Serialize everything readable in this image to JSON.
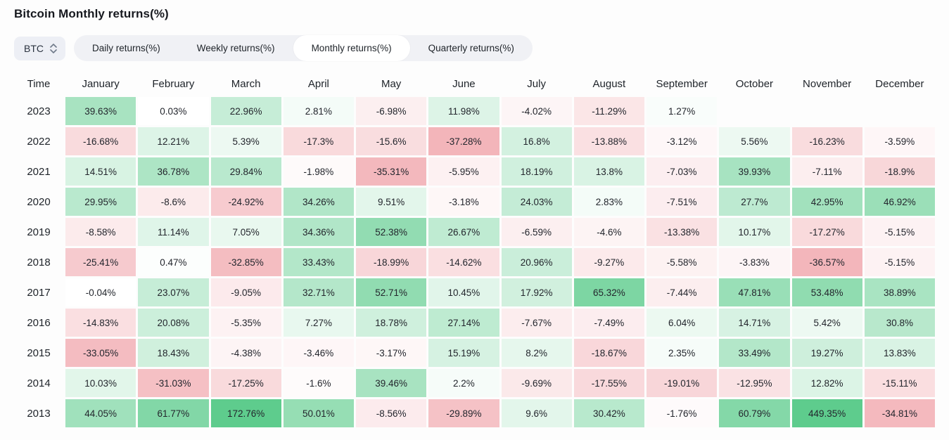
{
  "header": {
    "title": "Bitcoin Monthly returns(%)"
  },
  "controls": {
    "symbol_select": {
      "value": "BTC",
      "icon": "updown-chevron-icon"
    },
    "tabs": [
      {
        "label": "Daily returns(%)",
        "active": false
      },
      {
        "label": "Weekly returns(%)",
        "active": false
      },
      {
        "label": "Monthly returns(%)",
        "active": true
      },
      {
        "label": "Quarterly returns(%)",
        "active": false
      }
    ]
  },
  "chart_data": {
    "type": "heatmap",
    "title": "Bitcoin Monthly returns(%)",
    "time_column_header": "Time",
    "columns": [
      "January",
      "February",
      "March",
      "April",
      "May",
      "June",
      "July",
      "August",
      "September",
      "October",
      "November",
      "December"
    ],
    "rows": [
      {
        "year": "2023",
        "display": [
          "39.63%",
          "0.03%",
          "22.96%",
          "2.81%",
          "-6.98%",
          "11.98%",
          "-4.02%",
          "-11.29%",
          "1.27%",
          null,
          null,
          null
        ],
        "values": [
          39.63,
          0.03,
          22.96,
          2.81,
          -6.98,
          11.98,
          -4.02,
          -11.29,
          1.27,
          null,
          null,
          null
        ]
      },
      {
        "year": "2022",
        "display": [
          "-16.68%",
          "12.21%",
          "5.39%",
          "-17.3%",
          "-15.6%",
          "-37.28%",
          "16.8%",
          "-13.88%",
          "-3.12%",
          "5.56%",
          "-16.23%",
          "-3.59%"
        ],
        "values": [
          -16.68,
          12.21,
          5.39,
          -17.3,
          -15.6,
          -37.28,
          16.8,
          -13.88,
          -3.12,
          5.56,
          -16.23,
          -3.59
        ]
      },
      {
        "year": "2021",
        "display": [
          "14.51%",
          "36.78%",
          "29.84%",
          "-1.98%",
          "-35.31%",
          "-5.95%",
          "18.19%",
          "13.8%",
          "-7.03%",
          "39.93%",
          "-7.11%",
          "-18.9%"
        ],
        "values": [
          14.51,
          36.78,
          29.84,
          -1.98,
          -35.31,
          -5.95,
          18.19,
          13.8,
          -7.03,
          39.93,
          -7.11,
          -18.9
        ]
      },
      {
        "year": "2020",
        "display": [
          "29.95%",
          "-8.6%",
          "-24.92%",
          "34.26%",
          "9.51%",
          "-3.18%",
          "24.03%",
          "2.83%",
          "-7.51%",
          "27.7%",
          "42.95%",
          "46.92%"
        ],
        "values": [
          29.95,
          -8.6,
          -24.92,
          34.26,
          9.51,
          -3.18,
          24.03,
          2.83,
          -7.51,
          27.7,
          42.95,
          46.92
        ]
      },
      {
        "year": "2019",
        "display": [
          "-8.58%",
          "11.14%",
          "7.05%",
          "34.36%",
          "52.38%",
          "26.67%",
          "-6.59%",
          "-4.6%",
          "-13.38%",
          "10.17%",
          "-17.27%",
          "-5.15%"
        ],
        "values": [
          -8.58,
          11.14,
          7.05,
          34.36,
          52.38,
          26.67,
          -6.59,
          -4.6,
          -13.38,
          10.17,
          -17.27,
          -5.15
        ]
      },
      {
        "year": "2018",
        "display": [
          "-25.41%",
          "0.47%",
          "-32.85%",
          "33.43%",
          "-18.99%",
          "-14.62%",
          "20.96%",
          "-9.27%",
          "-5.58%",
          "-3.83%",
          "-36.57%",
          "-5.15%"
        ],
        "values": [
          -25.41,
          0.47,
          -32.85,
          33.43,
          -18.99,
          -14.62,
          20.96,
          -9.27,
          -5.58,
          -3.83,
          -36.57,
          -5.15
        ]
      },
      {
        "year": "2017",
        "display": [
          "-0.04%",
          "23.07%",
          "-9.05%",
          "32.71%",
          "52.71%",
          "10.45%",
          "17.92%",
          "65.32%",
          "-7.44%",
          "47.81%",
          "53.48%",
          "38.89%"
        ],
        "values": [
          -0.04,
          23.07,
          -9.05,
          32.71,
          52.71,
          10.45,
          17.92,
          65.32,
          -7.44,
          47.81,
          53.48,
          38.89
        ]
      },
      {
        "year": "2016",
        "display": [
          "-14.83%",
          "20.08%",
          "-5.35%",
          "7.27%",
          "18.78%",
          "27.14%",
          "-7.67%",
          "-7.49%",
          "6.04%",
          "14.71%",
          "5.42%",
          "30.8%"
        ],
        "values": [
          -14.83,
          20.08,
          -5.35,
          7.27,
          18.78,
          27.14,
          -7.67,
          -7.49,
          6.04,
          14.71,
          5.42,
          30.8
        ]
      },
      {
        "year": "2015",
        "display": [
          "-33.05%",
          "18.43%",
          "-4.38%",
          "-3.46%",
          "-3.17%",
          "15.19%",
          "8.2%",
          "-18.67%",
          "2.35%",
          "33.49%",
          "19.27%",
          "13.83%"
        ],
        "values": [
          -33.05,
          18.43,
          -4.38,
          -3.46,
          -3.17,
          15.19,
          8.2,
          -18.67,
          2.35,
          33.49,
          19.27,
          13.83
        ]
      },
      {
        "year": "2014",
        "display": [
          "10.03%",
          "-31.03%",
          "-17.25%",
          "-1.6%",
          "39.46%",
          "2.2%",
          "-9.69%",
          "-17.55%",
          "-19.01%",
          "-12.95%",
          "12.82%",
          "-15.11%"
        ],
        "values": [
          10.03,
          -31.03,
          -17.25,
          -1.6,
          39.46,
          2.2,
          -9.69,
          -17.55,
          -19.01,
          -12.95,
          12.82,
          -15.11
        ]
      },
      {
        "year": "2013",
        "display": [
          "44.05%",
          "61.77%",
          "172.76%",
          "50.01%",
          "-8.56%",
          "-29.89%",
          "9.6%",
          "30.42%",
          "-1.76%",
          "60.79%",
          "449.35%",
          "-34.81%"
        ],
        "values": [
          44.05,
          61.77,
          172.76,
          50.01,
          -8.56,
          -29.89,
          9.6,
          30.42,
          -1.76,
          60.79,
          449.35,
          -34.81
        ]
      }
    ],
    "colors": {
      "positive_max": "#5ecc8d",
      "negative_max": "#f3b5ba",
      "neutral": "#ffffff"
    },
    "legend_position": "none",
    "grid": false
  }
}
